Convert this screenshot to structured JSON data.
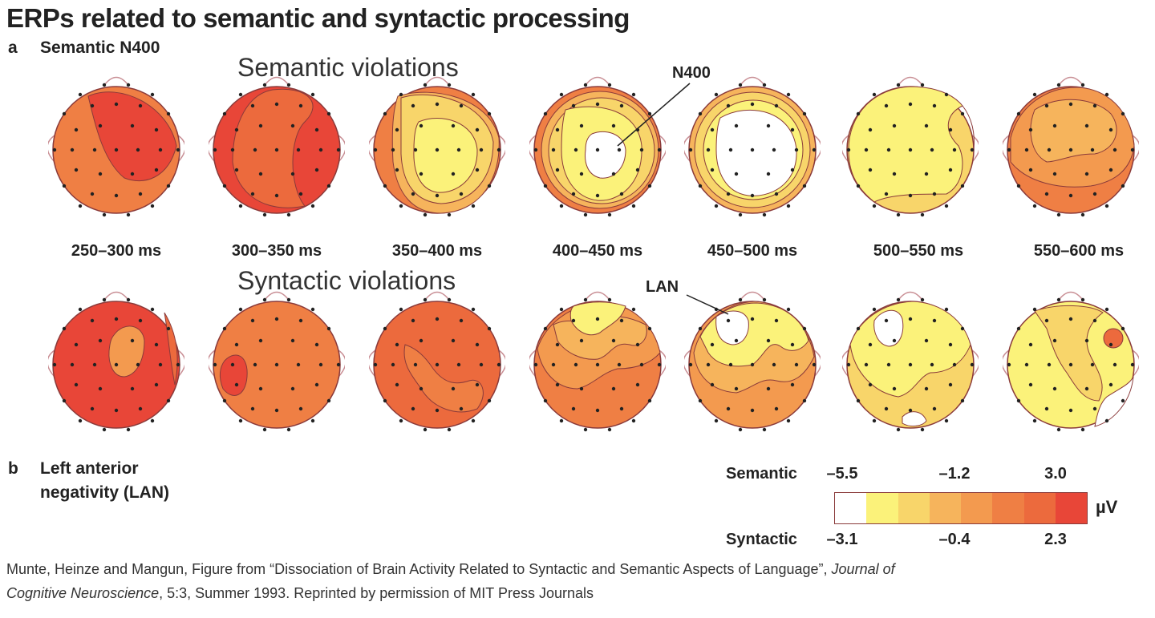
{
  "title": "ERPs related to semantic and syntactic processing",
  "panel_a": {
    "letter": "a",
    "label": "Semantic N400",
    "heading": "Semantic violations"
  },
  "panel_b": {
    "letter": "b",
    "label_line1": "Left anterior",
    "label_line2": "negativity (LAN)",
    "heading": "Syntactic violations"
  },
  "time_windows": [
    "250–300 ms",
    "300–350 ms",
    "350–400 ms",
    "400–450 ms",
    "450–500 ms",
    "500–550 ms",
    "550–600 ms"
  ],
  "callouts": {
    "n400": "N400",
    "lan": "LAN"
  },
  "legend": {
    "semantic_label": "Semantic",
    "semantic_ticks": [
      "–5.5",
      "–1.2",
      "3.0"
    ],
    "syntactic_label": "Syntactic",
    "syntactic_ticks": [
      "–3.1",
      "–0.4",
      "2.3"
    ],
    "unit": "µV",
    "colors": [
      "#ffffff",
      "#fbf27a",
      "#f8d56a",
      "#f6b45c",
      "#f39a4f",
      "#ef7f44",
      "#ec6a3d",
      "#e84638"
    ]
  },
  "citation": {
    "line1_prefix": "Munte, Heinze and Mangun, Figure from “Dissociation of Brain Activity Related to Syntactic and Semantic Aspects of Language”,",
    "line1_journal": "Journal of",
    "line2_journal": "Cognitive Neuroscience",
    "line2_suffix": ", 5:3, Summer 1993. Reprinted by permission of MIT Press Journals"
  }
}
